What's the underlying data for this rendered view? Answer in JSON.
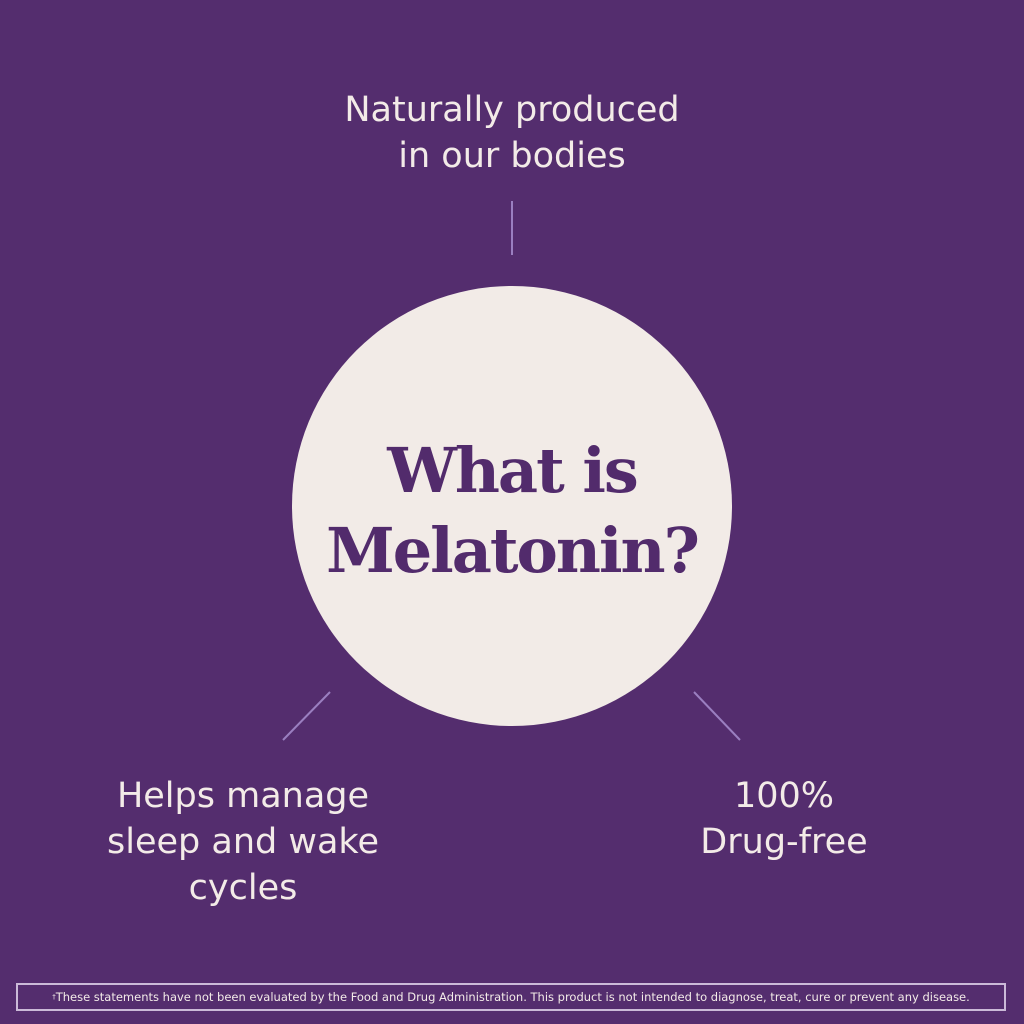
{
  "colors": {
    "background": "#542d6e",
    "circle": "#f2ebe7",
    "title": "#522b6c",
    "connector": "#9a7fc0"
  },
  "title_lines": [
    "What is",
    "Melatonin?"
  ],
  "facts": {
    "top": [
      "Naturally produced",
      "in our bodies"
    ],
    "left": [
      "Helps manage",
      "sleep and wake",
      "cycles"
    ],
    "right": [
      "100%",
      "Drug-free"
    ]
  },
  "footer": {
    "mark": "†",
    "text": "These statements have not been evaluated by the Food and Drug Administration. This product is not intended to diagnose, treat, cure or prevent any disease."
  }
}
